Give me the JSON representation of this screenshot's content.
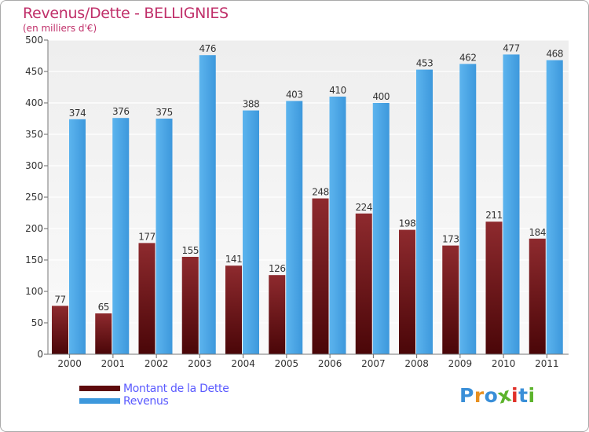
{
  "header": {
    "title": "Revenus/Dette - BELLIGNIES",
    "subtitle": "(en milliers d'€)"
  },
  "chart_data": {
    "type": "bar",
    "categories": [
      "2000",
      "2001",
      "2002",
      "2003",
      "2004",
      "2005",
      "2006",
      "2007",
      "2008",
      "2009",
      "2010",
      "2011"
    ],
    "series": [
      {
        "name": "Montant de la Dette",
        "values": [
          77,
          65,
          177,
          155,
          141,
          126,
          248,
          224,
          198,
          173,
          211,
          184
        ],
        "color": "#7a1a1e"
      },
      {
        "name": "Revenus",
        "values": [
          374,
          376,
          375,
          476,
          388,
          403,
          410,
          400,
          453,
          462,
          477,
          468
        ],
        "color": "#4ea7e6"
      }
    ],
    "ylim": [
      0,
      500
    ],
    "yticks": [
      0,
      50,
      100,
      150,
      200,
      250,
      300,
      350,
      400,
      450,
      500
    ],
    "grid": true,
    "legend_position": "bottom-left"
  },
  "logo": {
    "text": "Proxiti",
    "colors": [
      "#3a8fd8",
      "#e89020",
      "#3a8fd8",
      "#5cb32c",
      "#e0302a",
      "#3a8fd8",
      "#5cb32c"
    ]
  }
}
